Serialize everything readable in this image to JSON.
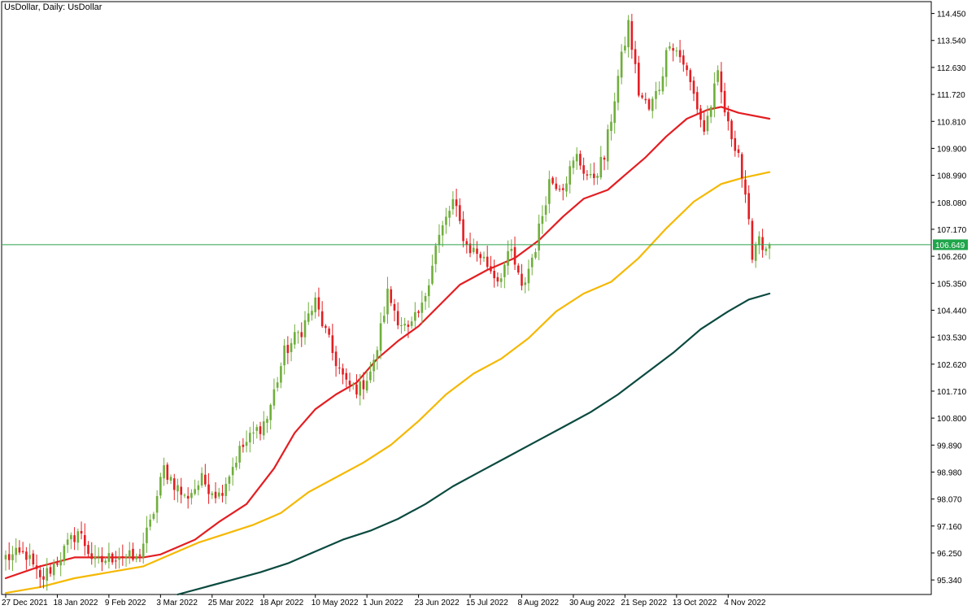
{
  "title": "UsDollar, Daily:  UsDollar",
  "colors": {
    "bull": "#6fae3c",
    "bear": "#e31e22",
    "ma_fast": "#e31e22",
    "ma_mid": "#f5b800",
    "ma_slow": "#0b4a40",
    "price_line": "#2ca24a",
    "price_badge": "#1fa54a",
    "axis": "#000000"
  },
  "chart_data": {
    "type": "line",
    "symbol": "UsDollar",
    "timeframe": "Daily",
    "current_price": "106.649",
    "ylim": [
      94.85,
      114.85
    ],
    "y_ticks": [
      "114.450",
      "113.540",
      "112.630",
      "111.720",
      "110.810",
      "109.900",
      "108.990",
      "108.080",
      "107.170",
      "106.260",
      "105.350",
      "104.440",
      "103.530",
      "102.620",
      "101.710",
      "100.800",
      "99.890",
      "98.980",
      "98.070",
      "97.160",
      "96.250",
      "95.340"
    ],
    "x_tick_labels": [
      "27 Dec 2021",
      "18 Jan 2022",
      "9 Feb 2022",
      "3 Mar 2022",
      "25 Mar 2022",
      "18 Apr 2022",
      "10 May 2022",
      "1 Jun 2022",
      "23 Jun 2022",
      "15 Jul 2022",
      "8 Aug 2022",
      "30 Aug 2022",
      "21 Sep 2022",
      "13 Oct 2022",
      "4 Nov 2022"
    ],
    "x_tick_bar_index": [
      0,
      15,
      30,
      45,
      60,
      75,
      90,
      105,
      120,
      135,
      150,
      165,
      180,
      195,
      210
    ],
    "close_anchors": [
      {
        "i": 0,
        "v": 96.1
      },
      {
        "i": 6,
        "v": 96.2
      },
      {
        "i": 10,
        "v": 95.3
      },
      {
        "i": 15,
        "v": 96.0
      },
      {
        "i": 21,
        "v": 97.0
      },
      {
        "i": 26,
        "v": 95.9
      },
      {
        "i": 33,
        "v": 96.2
      },
      {
        "i": 38,
        "v": 96.0
      },
      {
        "i": 42,
        "v": 97.2
      },
      {
        "i": 46,
        "v": 99.1
      },
      {
        "i": 52,
        "v": 98.1
      },
      {
        "i": 57,
        "v": 98.7
      },
      {
        "i": 62,
        "v": 98.2
      },
      {
        "i": 68,
        "v": 99.7
      },
      {
        "i": 76,
        "v": 100.8
      },
      {
        "i": 81,
        "v": 103.0
      },
      {
        "i": 86,
        "v": 103.8
      },
      {
        "i": 90,
        "v": 104.7
      },
      {
        "i": 95,
        "v": 103.0
      },
      {
        "i": 99,
        "v": 101.9
      },
      {
        "i": 103,
        "v": 101.8
      },
      {
        "i": 107,
        "v": 102.6
      },
      {
        "i": 111,
        "v": 105.0
      },
      {
        "i": 114,
        "v": 104.2
      },
      {
        "i": 117,
        "v": 103.7
      },
      {
        "i": 121,
        "v": 104.5
      },
      {
        "i": 125,
        "v": 106.6
      },
      {
        "i": 130,
        "v": 108.1
      },
      {
        "i": 134,
        "v": 106.6
      },
      {
        "i": 138,
        "v": 106.3
      },
      {
        "i": 143,
        "v": 105.5
      },
      {
        "i": 147,
        "v": 106.4
      },
      {
        "i": 150,
        "v": 105.1
      },
      {
        "i": 154,
        "v": 106.6
      },
      {
        "i": 158,
        "v": 108.8
      },
      {
        "i": 162,
        "v": 108.7
      },
      {
        "i": 166,
        "v": 109.6
      },
      {
        "i": 170,
        "v": 108.8
      },
      {
        "i": 174,
        "v": 109.6
      },
      {
        "i": 178,
        "v": 112.3
      },
      {
        "i": 181,
        "v": 114.1
      },
      {
        "i": 184,
        "v": 111.8
      },
      {
        "i": 187,
        "v": 111.2
      },
      {
        "i": 190,
        "v": 112.0
      },
      {
        "i": 193,
        "v": 113.6
      },
      {
        "i": 197,
        "v": 112.8
      },
      {
        "i": 200,
        "v": 111.7
      },
      {
        "i": 203,
        "v": 110.5
      },
      {
        "i": 207,
        "v": 112.3
      },
      {
        "i": 210,
        "v": 110.6
      },
      {
        "i": 213,
        "v": 109.8
      },
      {
        "i": 215,
        "v": 108.1
      },
      {
        "i": 217,
        "v": 106.4
      },
      {
        "i": 219,
        "v": 107.0
      },
      {
        "i": 221,
        "v": 106.3
      },
      {
        "i": 222,
        "v": 106.65
      }
    ],
    "bar_count": 223,
    "moving_averages": [
      {
        "id": "fast",
        "color_key": "ma_fast",
        "points": [
          [
            0,
            95.4
          ],
          [
            10,
            95.8
          ],
          [
            20,
            96.1
          ],
          [
            30,
            96.1
          ],
          [
            40,
            96.1
          ],
          [
            45,
            96.2
          ],
          [
            55,
            96.7
          ],
          [
            62,
            97.3
          ],
          [
            70,
            97.9
          ],
          [
            78,
            99.1
          ],
          [
            84,
            100.3
          ],
          [
            90,
            101.1
          ],
          [
            96,
            101.6
          ],
          [
            102,
            102.0
          ],
          [
            108,
            102.8
          ],
          [
            114,
            103.4
          ],
          [
            120,
            103.9
          ],
          [
            126,
            104.6
          ],
          [
            132,
            105.3
          ],
          [
            140,
            105.8
          ],
          [
            148,
            106.2
          ],
          [
            155,
            106.8
          ],
          [
            162,
            107.6
          ],
          [
            168,
            108.2
          ],
          [
            175,
            108.5
          ],
          [
            180,
            109.0
          ],
          [
            186,
            109.6
          ],
          [
            192,
            110.3
          ],
          [
            198,
            110.9
          ],
          [
            204,
            111.2
          ],
          [
            208,
            111.3
          ],
          [
            213,
            111.1
          ],
          [
            222,
            110.9
          ]
        ]
      },
      {
        "id": "mid",
        "color_key": "ma_mid",
        "points": [
          [
            0,
            94.9
          ],
          [
            10,
            95.1
          ],
          [
            20,
            95.4
          ],
          [
            30,
            95.6
          ],
          [
            40,
            95.8
          ],
          [
            48,
            96.2
          ],
          [
            56,
            96.6
          ],
          [
            64,
            96.9
          ],
          [
            72,
            97.2
          ],
          [
            80,
            97.6
          ],
          [
            88,
            98.3
          ],
          [
            96,
            98.8
          ],
          [
            104,
            99.3
          ],
          [
            112,
            99.9
          ],
          [
            120,
            100.7
          ],
          [
            128,
            101.6
          ],
          [
            136,
            102.3
          ],
          [
            144,
            102.8
          ],
          [
            152,
            103.5
          ],
          [
            160,
            104.4
          ],
          [
            168,
            105.0
          ],
          [
            176,
            105.4
          ],
          [
            184,
            106.2
          ],
          [
            192,
            107.2
          ],
          [
            200,
            108.1
          ],
          [
            208,
            108.7
          ],
          [
            214,
            108.9
          ],
          [
            222,
            109.1
          ]
        ]
      },
      {
        "id": "slow",
        "color_key": "ma_slow",
        "points": [
          [
            50,
            94.85
          ],
          [
            58,
            95.1
          ],
          [
            66,
            95.35
          ],
          [
            74,
            95.6
          ],
          [
            82,
            95.9
          ],
          [
            90,
            96.3
          ],
          [
            98,
            96.7
          ],
          [
            106,
            97.0
          ],
          [
            114,
            97.4
          ],
          [
            122,
            97.9
          ],
          [
            130,
            98.5
          ],
          [
            138,
            99.0
          ],
          [
            146,
            99.5
          ],
          [
            154,
            100.0
          ],
          [
            162,
            100.5
          ],
          [
            170,
            101.0
          ],
          [
            178,
            101.6
          ],
          [
            186,
            102.3
          ],
          [
            194,
            103.0
          ],
          [
            202,
            103.8
          ],
          [
            210,
            104.4
          ],
          [
            216,
            104.8
          ],
          [
            222,
            105.0
          ]
        ]
      }
    ]
  }
}
